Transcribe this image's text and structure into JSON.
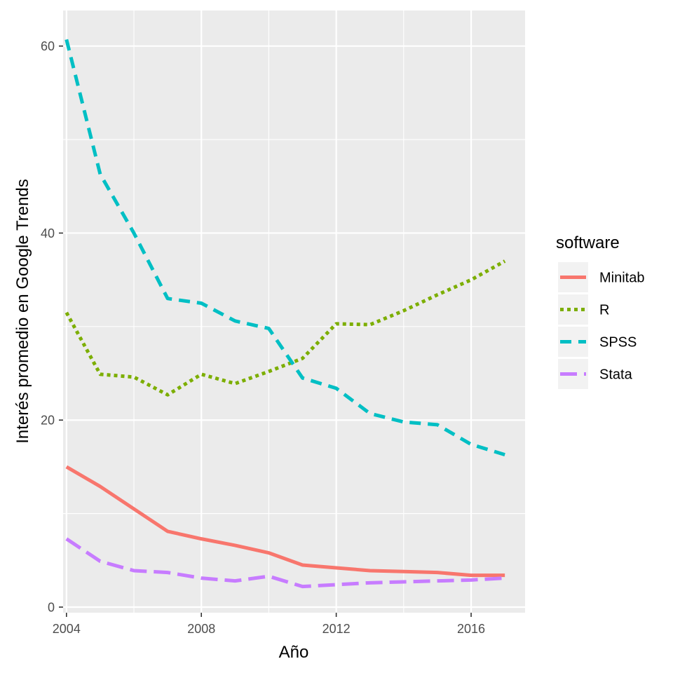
{
  "chart_data": {
    "type": "line",
    "title": "",
    "xlabel": "Año",
    "ylabel": "Interés promedio en Google Trends",
    "xlim": [
      2003.9,
      2017.6
    ],
    "ylim": [
      -0.6,
      63.8
    ],
    "x_ticks": [
      2004,
      2008,
      2012,
      2016
    ],
    "y_ticks": [
      0,
      20,
      40,
      60
    ],
    "grid": true,
    "legend": {
      "title": "software",
      "placement": "right"
    },
    "x": [
      2004,
      2005,
      2006,
      2007,
      2008,
      2009,
      2010,
      2011,
      2012,
      2013,
      2014,
      2015,
      2016,
      2017
    ],
    "series": [
      {
        "name": "Minitab",
        "color": "#F8766D",
        "dash": "solid",
        "values": [
          15.0,
          12.9,
          10.5,
          8.1,
          7.3,
          6.6,
          5.8,
          4.5,
          4.2,
          3.9,
          3.8,
          3.7,
          3.4,
          3.4
        ]
      },
      {
        "name": "R",
        "color": "#7CAE00",
        "dash": "dotted",
        "values": [
          31.5,
          24.9,
          24.6,
          22.7,
          24.9,
          23.9,
          25.2,
          26.6,
          30.3,
          30.2,
          31.7,
          33.4,
          35.0,
          37.0
        ]
      },
      {
        "name": "SPSS",
        "color": "#00BFC4",
        "dash": "dashed",
        "values": [
          60.7,
          46.3,
          40.0,
          33.0,
          32.5,
          30.6,
          29.8,
          24.5,
          23.4,
          20.7,
          19.8,
          19.5,
          17.4,
          16.3
        ]
      },
      {
        "name": "Stata",
        "color": "#C77CFF",
        "dash": "longdash",
        "values": [
          7.3,
          4.9,
          3.9,
          3.7,
          3.1,
          2.8,
          3.3,
          2.2,
          2.4,
          2.6,
          2.7,
          2.8,
          2.9,
          3.1
        ]
      }
    ]
  }
}
